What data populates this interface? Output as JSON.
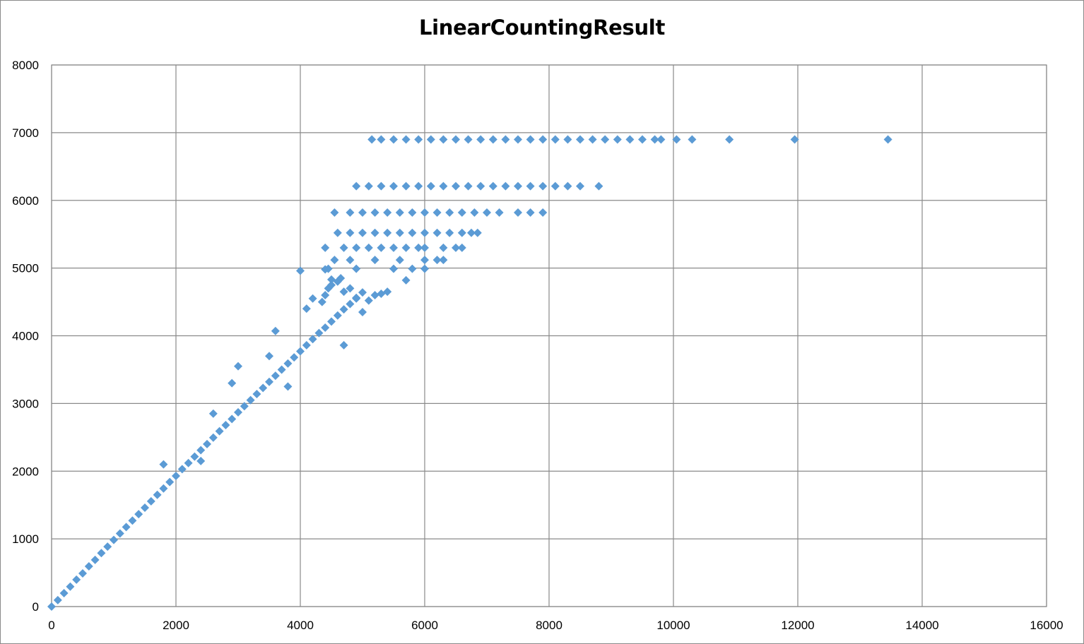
{
  "chart_data": {
    "type": "scatter",
    "title": "LinearCountingResult",
    "xlabel": "",
    "ylabel": "",
    "xlim": [
      0,
      16000
    ],
    "ylim": [
      0,
      8000
    ],
    "x_ticks": [
      "0",
      "2000",
      "4000",
      "6000",
      "8000",
      "10000",
      "12000",
      "14000",
      "16000"
    ],
    "y_ticks": [
      "0",
      "1000",
      "2000",
      "3000",
      "4000",
      "5000",
      "6000",
      "7000",
      "8000"
    ],
    "grid": true,
    "legend": "none",
    "marker": "diamond",
    "marker_color": "#5b9bd5",
    "series": [
      {
        "points": [
          [
            0,
            0
          ],
          [
            100,
            95
          ],
          [
            200,
            198
          ],
          [
            300,
            295
          ],
          [
            400,
            398
          ],
          [
            500,
            490
          ],
          [
            600,
            595
          ],
          [
            700,
            690
          ],
          [
            800,
            790
          ],
          [
            900,
            885
          ],
          [
            1000,
            985
          ],
          [
            1100,
            1080
          ],
          [
            1200,
            1175
          ],
          [
            1300,
            1270
          ],
          [
            1400,
            1365
          ],
          [
            1500,
            1460
          ],
          [
            1600,
            1555
          ],
          [
            1700,
            1650
          ],
          [
            1800,
            1745
          ],
          [
            1900,
            1840
          ],
          [
            2000,
            1930
          ],
          [
            2100,
            2030
          ],
          [
            2200,
            2120
          ],
          [
            2300,
            2215
          ],
          [
            2400,
            2310
          ],
          [
            2500,
            2400
          ],
          [
            2600,
            2495
          ],
          [
            2700,
            2590
          ],
          [
            2800,
            2680
          ],
          [
            2900,
            2770
          ],
          [
            3000,
            2870
          ],
          [
            3100,
            2960
          ],
          [
            3200,
            3050
          ],
          [
            3300,
            3140
          ],
          [
            3400,
            3230
          ],
          [
            3500,
            3320
          ],
          [
            3600,
            3410
          ],
          [
            3700,
            3500
          ],
          [
            3800,
            3590
          ],
          [
            3900,
            3680
          ],
          [
            4000,
            3770
          ],
          [
            4100,
            3860
          ],
          [
            4200,
            3950
          ],
          [
            4300,
            4040
          ],
          [
            4400,
            4120
          ],
          [
            4500,
            4210
          ],
          [
            4600,
            4300
          ],
          [
            4700,
            4390
          ],
          [
            4800,
            4470
          ],
          [
            4900,
            4560
          ],
          [
            5000,
            4640
          ],
          [
            1800,
            2100
          ],
          [
            2600,
            2850
          ],
          [
            3500,
            3700
          ],
          [
            3600,
            4070
          ],
          [
            4000,
            4960
          ],
          [
            4500,
            4830
          ],
          [
            4700,
            3860
          ],
          [
            5100,
            4520
          ],
          [
            5000,
            4350
          ],
          [
            3800,
            3250
          ],
          [
            2400,
            2150
          ],
          [
            3000,
            3550
          ],
          [
            4200,
            4550
          ],
          [
            2900,
            3300
          ],
          [
            4100,
            4400
          ],
          [
            5400,
            4650
          ],
          [
            5700,
            4820
          ],
          [
            5300,
            4620
          ],
          [
            4350,
            4500
          ],
          [
            4400,
            4600
          ],
          [
            4450,
            4700
          ],
          [
            4500,
            4750
          ],
          [
            4600,
            4800
          ],
          [
            4650,
            4850
          ],
          [
            4700,
            4650
          ],
          [
            4800,
            4700
          ],
          [
            4900,
            4550
          ],
          [
            5200,
            4600
          ],
          [
            4400,
            4980
          ],
          [
            4550,
            5120
          ],
          [
            4800,
            5120
          ],
          [
            5200,
            5120
          ],
          [
            5600,
            5120
          ],
          [
            6000,
            5120
          ],
          [
            6200,
            5120
          ],
          [
            6300,
            5120
          ],
          [
            4450,
            4990
          ],
          [
            4900,
            4990
          ],
          [
            5500,
            4990
          ],
          [
            5800,
            4990
          ],
          [
            6000,
            4990
          ],
          [
            4400,
            5300
          ],
          [
            4700,
            5300
          ],
          [
            4900,
            5300
          ],
          [
            5100,
            5300
          ],
          [
            5300,
            5300
          ],
          [
            5500,
            5300
          ],
          [
            5700,
            5300
          ],
          [
            5900,
            5300
          ],
          [
            6000,
            5300
          ],
          [
            6300,
            5300
          ],
          [
            6500,
            5300
          ],
          [
            6600,
            5300
          ],
          [
            4600,
            5520
          ],
          [
            4800,
            5520
          ],
          [
            5000,
            5520
          ],
          [
            5200,
            5520
          ],
          [
            5400,
            5520
          ],
          [
            5600,
            5520
          ],
          [
            5800,
            5520
          ],
          [
            6000,
            5520
          ],
          [
            6200,
            5520
          ],
          [
            6400,
            5520
          ],
          [
            6600,
            5520
          ],
          [
            6750,
            5520
          ],
          [
            6850,
            5520
          ],
          [
            4550,
            5820
          ],
          [
            4800,
            5820
          ],
          [
            5000,
            5820
          ],
          [
            5200,
            5820
          ],
          [
            5400,
            5820
          ],
          [
            5600,
            5820
          ],
          [
            5800,
            5820
          ],
          [
            6000,
            5820
          ],
          [
            6200,
            5820
          ],
          [
            6400,
            5820
          ],
          [
            6600,
            5820
          ],
          [
            6800,
            5820
          ],
          [
            7000,
            5820
          ],
          [
            7200,
            5820
          ],
          [
            7500,
            5820
          ],
          [
            7700,
            5820
          ],
          [
            7900,
            5820
          ],
          [
            4900,
            6210
          ],
          [
            5100,
            6210
          ],
          [
            5300,
            6210
          ],
          [
            5500,
            6210
          ],
          [
            5700,
            6210
          ],
          [
            5900,
            6210
          ],
          [
            6100,
            6210
          ],
          [
            6300,
            6210
          ],
          [
            6500,
            6210
          ],
          [
            6700,
            6210
          ],
          [
            6900,
            6210
          ],
          [
            7100,
            6210
          ],
          [
            7300,
            6210
          ],
          [
            7500,
            6210
          ],
          [
            7700,
            6210
          ],
          [
            7900,
            6210
          ],
          [
            8100,
            6210
          ],
          [
            8300,
            6210
          ],
          [
            8500,
            6210
          ],
          [
            8800,
            6210
          ],
          [
            5150,
            6900
          ],
          [
            5300,
            6900
          ],
          [
            5500,
            6900
          ],
          [
            5700,
            6900
          ],
          [
            5900,
            6900
          ],
          [
            6100,
            6900
          ],
          [
            6300,
            6900
          ],
          [
            6500,
            6900
          ],
          [
            6700,
            6900
          ],
          [
            6900,
            6900
          ],
          [
            7100,
            6900
          ],
          [
            7300,
            6900
          ],
          [
            7500,
            6900
          ],
          [
            7700,
            6900
          ],
          [
            7900,
            6900
          ],
          [
            8100,
            6900
          ],
          [
            8300,
            6900
          ],
          [
            8500,
            6900
          ],
          [
            8700,
            6900
          ],
          [
            8900,
            6900
          ],
          [
            9100,
            6900
          ],
          [
            9300,
            6900
          ],
          [
            9500,
            6900
          ],
          [
            9700,
            6900
          ],
          [
            9800,
            6900
          ],
          [
            10050,
            6900
          ],
          [
            10300,
            6900
          ],
          [
            10900,
            6900
          ],
          [
            11950,
            6900
          ],
          [
            13450,
            6900
          ]
        ]
      }
    ]
  }
}
